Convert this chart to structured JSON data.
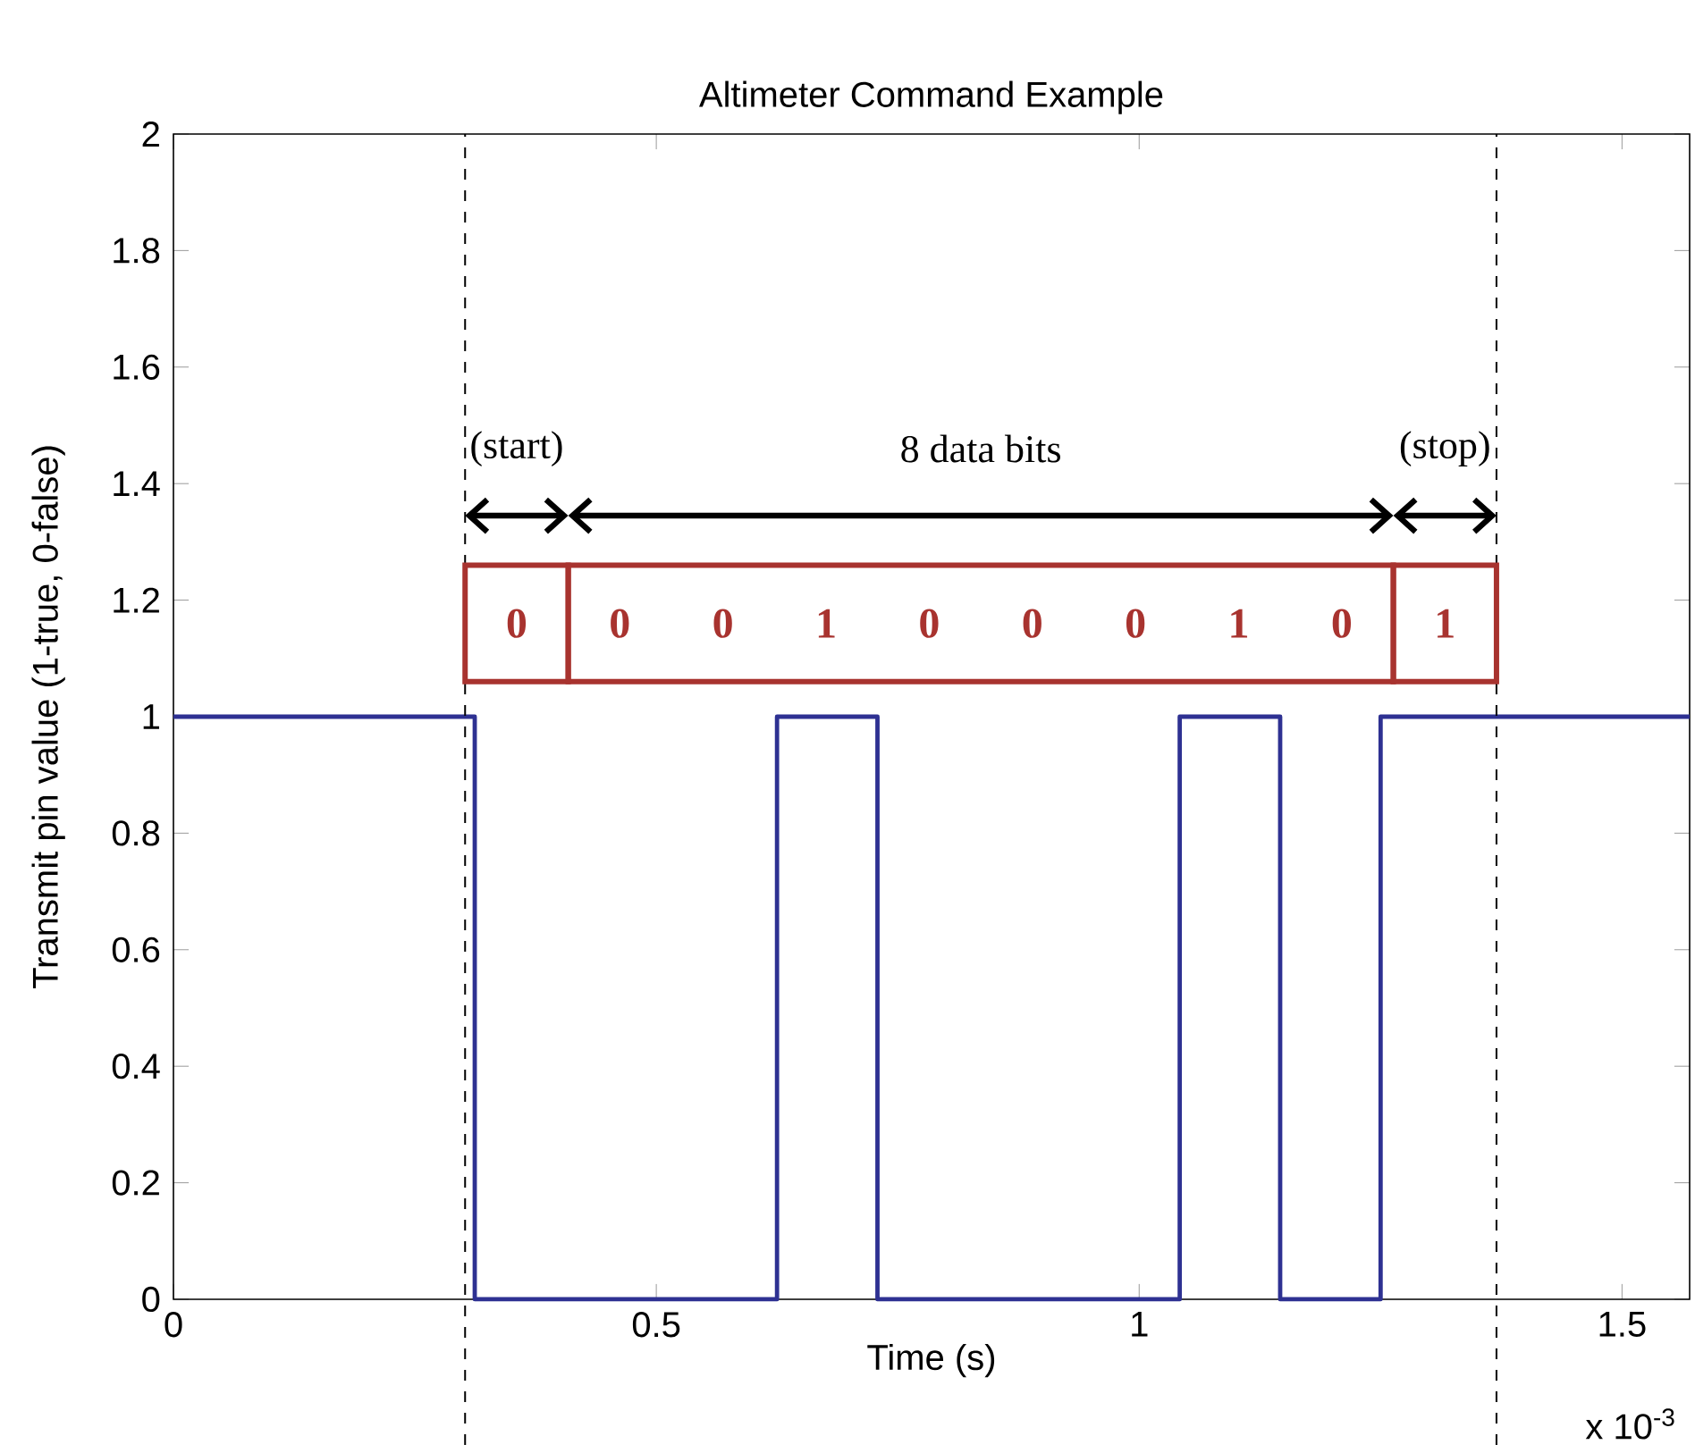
{
  "chart_data": {
    "type": "step",
    "title": "Altimeter Command Example",
    "xlabel": "Time (s)",
    "ylabel": "Transmit pin value (1-true, 0-false)",
    "x": [
      0,
      0.312,
      0.625,
      0.729,
      1.042,
      1.146,
      1.25,
      1.57
    ],
    "series": [
      {
        "color": "#2e3192",
        "values": [
          1,
          0,
          1,
          0,
          1,
          0,
          1,
          1
        ]
      }
    ],
    "xlim": [
      0,
      1.57
    ],
    "xticks": [
      0,
      0.5,
      1,
      1.5
    ],
    "ylim": [
      0,
      2
    ],
    "yticks": [
      0,
      0.2,
      0.4,
      0.6,
      0.8,
      1,
      1.2,
      1.4,
      1.6,
      1.8,
      2
    ],
    "grid": false,
    "marker": "none",
    "line_style": "solid",
    "ref_lines": [
      {
        "axis": "x",
        "value": 0.302,
        "color": "#000000",
        "line_style": "dashed"
      },
      {
        "axis": "x",
        "value": 1.37,
        "color": "#000000",
        "line_style": "dashed"
      }
    ],
    "annotations": [
      "x 10$^{-3}$",
      "(start)",
      "8 data bits",
      "(stop)",
      "0",
      "0",
      "0",
      "1",
      "0",
      "0",
      "0",
      "1",
      "0",
      "1"
    ]
  }
}
